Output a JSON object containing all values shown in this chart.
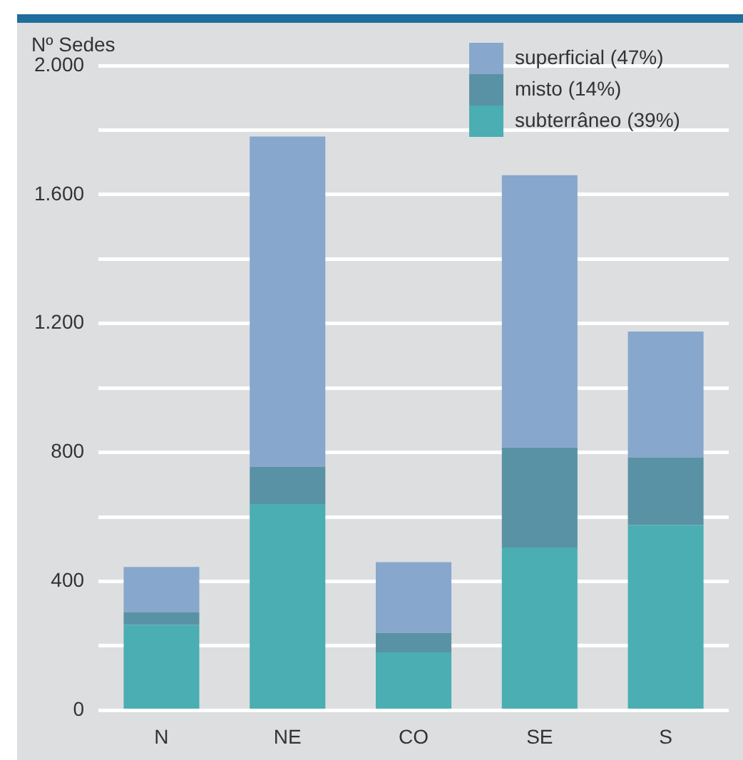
{
  "chart_data": {
    "type": "bar",
    "stacked": true,
    "ylabel": "Nº Sedes",
    "categories": [
      "N",
      "NE",
      "CO",
      "SE",
      "S"
    ],
    "series": [
      {
        "name": "subterrâneo (39%)",
        "color": "#4aaeb2",
        "values": [
          265,
          640,
          180,
          505,
          575
        ]
      },
      {
        "name": "misto (14%)",
        "color": "#5a92a5",
        "values": [
          40,
          115,
          60,
          310,
          210
        ]
      },
      {
        "name": "superficial (47%)",
        "color": "#87a7cc",
        "values": [
          140,
          1025,
          220,
          845,
          390
        ]
      }
    ],
    "ylim": [
      0,
      2000
    ],
    "yticks": [
      0,
      {
        "value": 200,
        "label": null
      },
      {
        "value": 400,
        "label": "400"
      },
      {
        "value": 600,
        "label": null
      },
      {
        "value": 800,
        "label": "800"
      },
      {
        "value": 1000,
        "label": null
      },
      {
        "value": 1200,
        "label": "1.200"
      },
      {
        "value": 1400,
        "label": null
      },
      {
        "value": 1600,
        "label": "1.600"
      },
      {
        "value": 1800,
        "label": null
      },
      {
        "value": 2000,
        "label": "2.000"
      }
    ],
    "grid": "y",
    "legend": "top right"
  }
}
